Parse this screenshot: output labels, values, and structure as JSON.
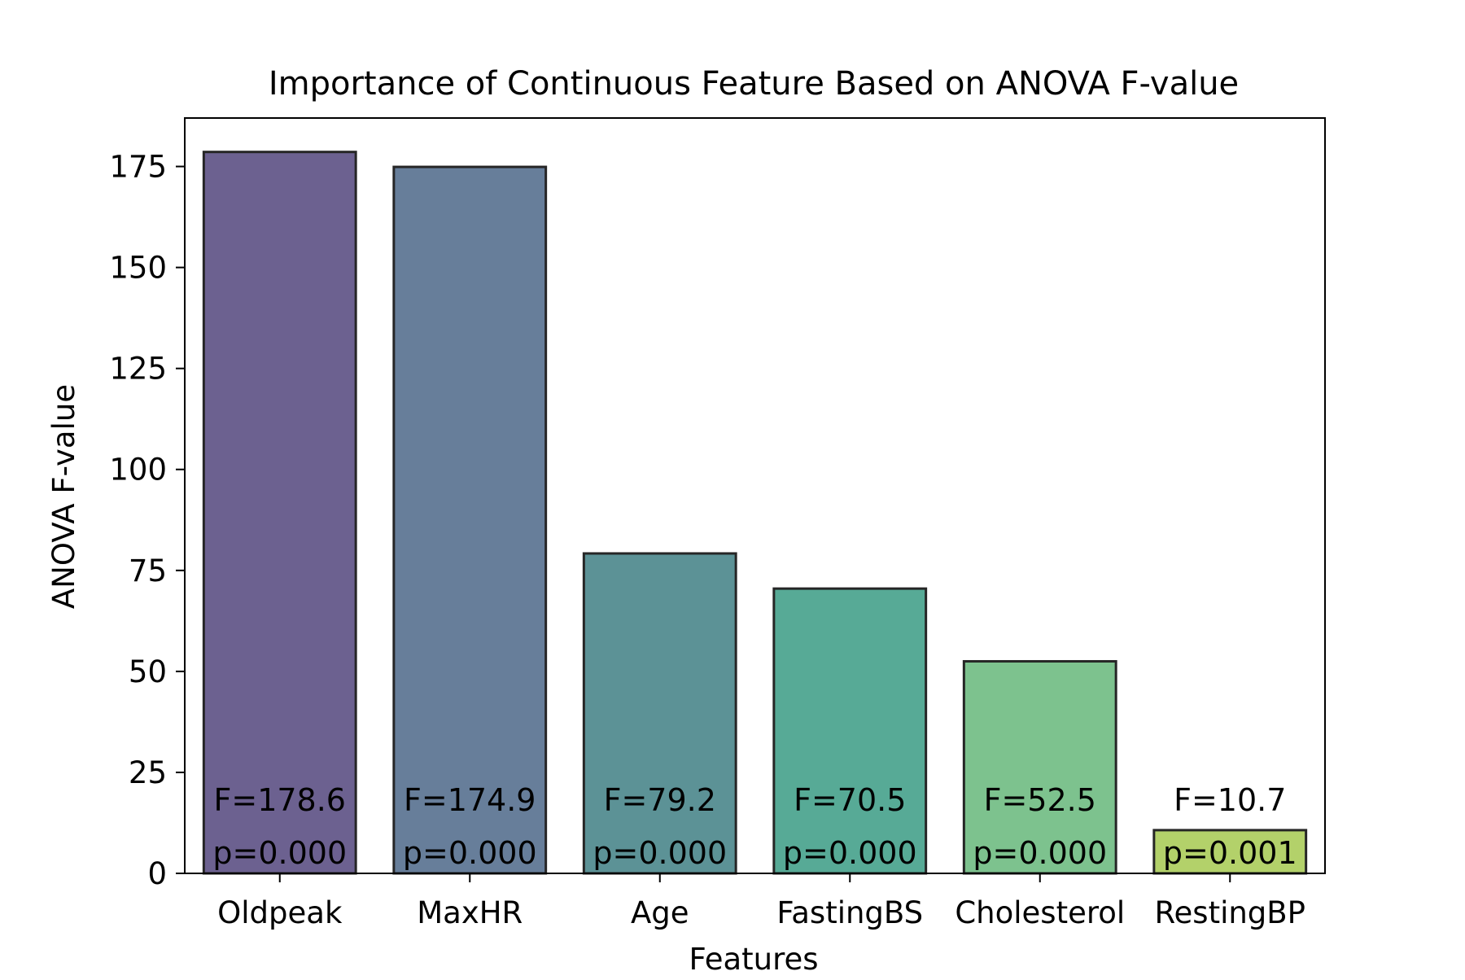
{
  "chart_data": {
    "type": "bar",
    "title": "Importance of Continuous Feature Based on ANOVA F-value",
    "xlabel": "Features",
    "ylabel": "ANOVA F-value",
    "ylim": [
      0,
      187
    ],
    "yticks": [
      0,
      25,
      50,
      75,
      100,
      125,
      150,
      175
    ],
    "grid": false,
    "categories": [
      "Oldpeak",
      "MaxHR",
      "Age",
      "FastingBS",
      "Cholesterol",
      "RestingBP"
    ],
    "values": [
      178.6,
      174.9,
      79.2,
      70.5,
      52.5,
      10.7
    ],
    "f_labels": [
      "F=178.6",
      "F=174.9",
      "F=79.2",
      "F=70.5",
      "F=52.5",
      "F=10.7"
    ],
    "p_labels": [
      "p=0.000",
      "p=0.000",
      "p=0.000",
      "p=0.000",
      "p=0.000",
      "p=0.001"
    ],
    "colors": [
      "#6c6190",
      "#677e9a",
      "#5c9296",
      "#57aa96",
      "#7dc28e",
      "#b3d16a"
    ],
    "bar_edge_color": "#262626"
  }
}
